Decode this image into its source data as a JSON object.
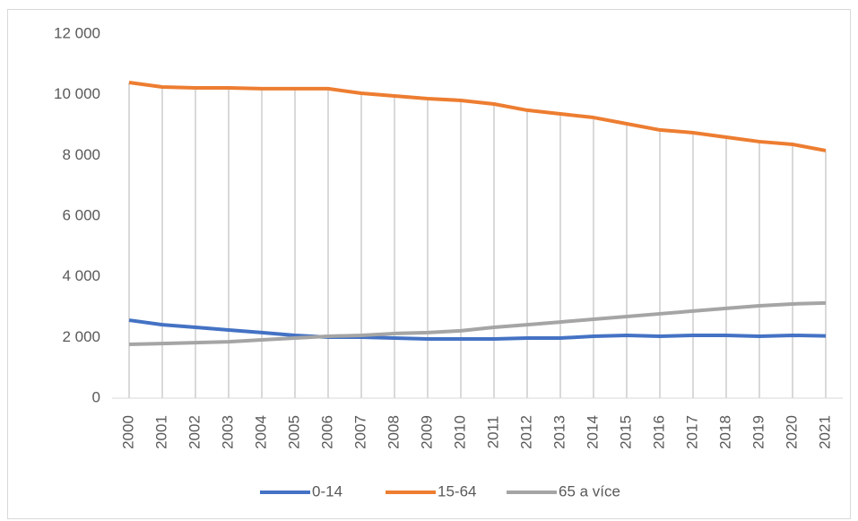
{
  "chart_data": {
    "type": "line",
    "categories": [
      "2000",
      "2001",
      "2002",
      "2003",
      "2004",
      "2005",
      "2006",
      "2007",
      "2008",
      "2009",
      "2010",
      "2011",
      "2012",
      "2013",
      "2014",
      "2015",
      "2016",
      "2017",
      "2018",
      "2019",
      "2020",
      "2021"
    ],
    "series": [
      {
        "name": "0-14",
        "color": "#4472c4",
        "values": [
          2570,
          2420,
          2335,
          2245,
          2160,
          2070,
          2010,
          2010,
          1980,
          1950,
          1950,
          1950,
          1980,
          1980,
          2040,
          2070,
          2040,
          2070,
          2070,
          2040,
          2070,
          2050
        ]
      },
      {
        "name": "15-64",
        "color": "#ed7d31",
        "values": [
          10405,
          10257,
          10227,
          10227,
          10200,
          10200,
          10200,
          10050,
          9960,
          9873,
          9814,
          9695,
          9490,
          9370,
          9250,
          9045,
          8840,
          8750,
          8600,
          8455,
          8365,
          8160
        ]
      },
      {
        "name": "65 a více",
        "color": "#a5a5a5",
        "values": [
          1775,
          1800,
          1830,
          1860,
          1920,
          1980,
          2040,
          2070,
          2130,
          2160,
          2220,
          2335,
          2420,
          2510,
          2600,
          2690,
          2780,
          2870,
          2960,
          3045,
          3105,
          3135
        ]
      }
    ],
    "ylim": [
      0,
      12000
    ],
    "yticks": [
      0,
      {
        "value": 2000,
        "label": "2 000"
      },
      {
        "value": 4000,
        "label": "4 000"
      },
      {
        "value": 6000,
        "label": "6 000"
      },
      {
        "value": 8000,
        "label": "8 000"
      },
      {
        "value": 10000,
        "label": "10 000"
      },
      {
        "value": 12000,
        "label": "12 000"
      }
    ],
    "drop_lines": true,
    "legend": "bottom"
  }
}
